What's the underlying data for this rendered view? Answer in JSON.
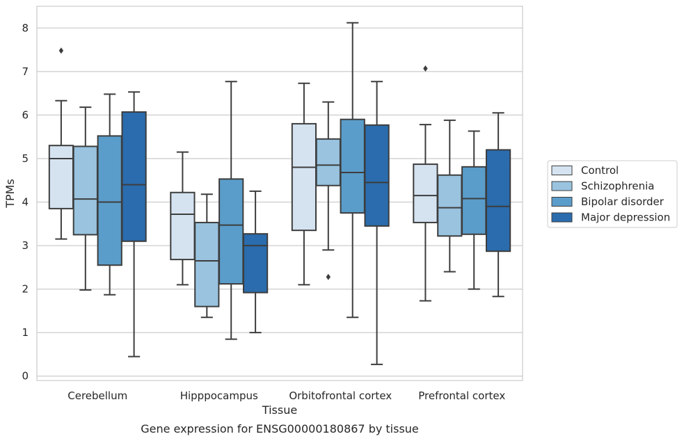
{
  "chart_data": {
    "type": "box",
    "title": "",
    "caption": "Gene expression for ENSG00000180867 by tissue",
    "xlabel": "Tissue",
    "ylabel": "TPMs",
    "ylim": [
      -0.1,
      8.5
    ],
    "yticks": [
      0,
      1,
      2,
      3,
      4,
      5,
      6,
      7,
      8
    ],
    "grid": "horizontal",
    "legend_position": "right",
    "categories": [
      "Cerebellum",
      "Hipppocampus",
      "Orbitofrontal cortex",
      "Prefrontal cortex"
    ],
    "series": [
      {
        "name": "Control",
        "color": "#d5e3f1",
        "boxes": [
          {
            "whisker_low": 3.15,
            "q1": 3.85,
            "median": 5.0,
            "q3": 5.3,
            "whisker_high": 6.33,
            "outliers": [
              7.48
            ]
          },
          {
            "whisker_low": 2.1,
            "q1": 2.68,
            "median": 3.72,
            "q3": 4.22,
            "whisker_high": 5.15,
            "outliers": []
          },
          {
            "whisker_low": 2.1,
            "q1": 3.35,
            "median": 4.8,
            "q3": 5.8,
            "whisker_high": 6.73,
            "outliers": []
          },
          {
            "whisker_low": 1.73,
            "q1": 3.53,
            "median": 4.15,
            "q3": 4.87,
            "whisker_high": 5.78,
            "outliers": [
              7.07
            ]
          }
        ]
      },
      {
        "name": "Schizophrenia",
        "color": "#99c3df",
        "boxes": [
          {
            "whisker_low": 1.98,
            "q1": 3.25,
            "median": 4.07,
            "q3": 5.28,
            "whisker_high": 6.18,
            "outliers": []
          },
          {
            "whisker_low": 1.35,
            "q1": 1.6,
            "median": 2.65,
            "q3": 3.53,
            "whisker_high": 4.18,
            "outliers": []
          },
          {
            "whisker_low": 2.9,
            "q1": 4.38,
            "median": 4.85,
            "q3": 5.45,
            "whisker_high": 6.3,
            "outliers": [
              2.28
            ]
          },
          {
            "whisker_low": 2.4,
            "q1": 3.22,
            "median": 3.87,
            "q3": 4.62,
            "whisker_high": 5.88,
            "outliers": []
          }
        ]
      },
      {
        "name": "Bipolar disorder",
        "color": "#5a9dca",
        "boxes": [
          {
            "whisker_low": 1.87,
            "q1": 2.55,
            "median": 4.0,
            "q3": 5.52,
            "whisker_high": 6.48,
            "outliers": []
          },
          {
            "whisker_low": 0.85,
            "q1": 2.12,
            "median": 3.47,
            "q3": 4.53,
            "whisker_high": 6.77,
            "outliers": []
          },
          {
            "whisker_low": 1.35,
            "q1": 3.75,
            "median": 4.68,
            "q3": 5.9,
            "whisker_high": 8.12,
            "outliers": []
          },
          {
            "whisker_low": 2.0,
            "q1": 3.26,
            "median": 4.08,
            "q3": 4.81,
            "whisker_high": 5.63,
            "outliers": []
          }
        ]
      },
      {
        "name": "Major depression",
        "color": "#2a6cad",
        "boxes": [
          {
            "whisker_low": 0.45,
            "q1": 3.1,
            "median": 4.4,
            "q3": 6.07,
            "whisker_high": 6.53,
            "outliers": []
          },
          {
            "whisker_low": 1.0,
            "q1": 1.92,
            "median": 3.0,
            "q3": 3.27,
            "whisker_high": 4.25,
            "outliers": []
          },
          {
            "whisker_low": 0.27,
            "q1": 3.45,
            "median": 4.45,
            "q3": 5.77,
            "whisker_high": 6.77,
            "outliers": []
          },
          {
            "whisker_low": 1.83,
            "q1": 2.87,
            "median": 3.9,
            "q3": 5.2,
            "whisker_high": 6.05,
            "outliers": []
          }
        ]
      }
    ]
  }
}
